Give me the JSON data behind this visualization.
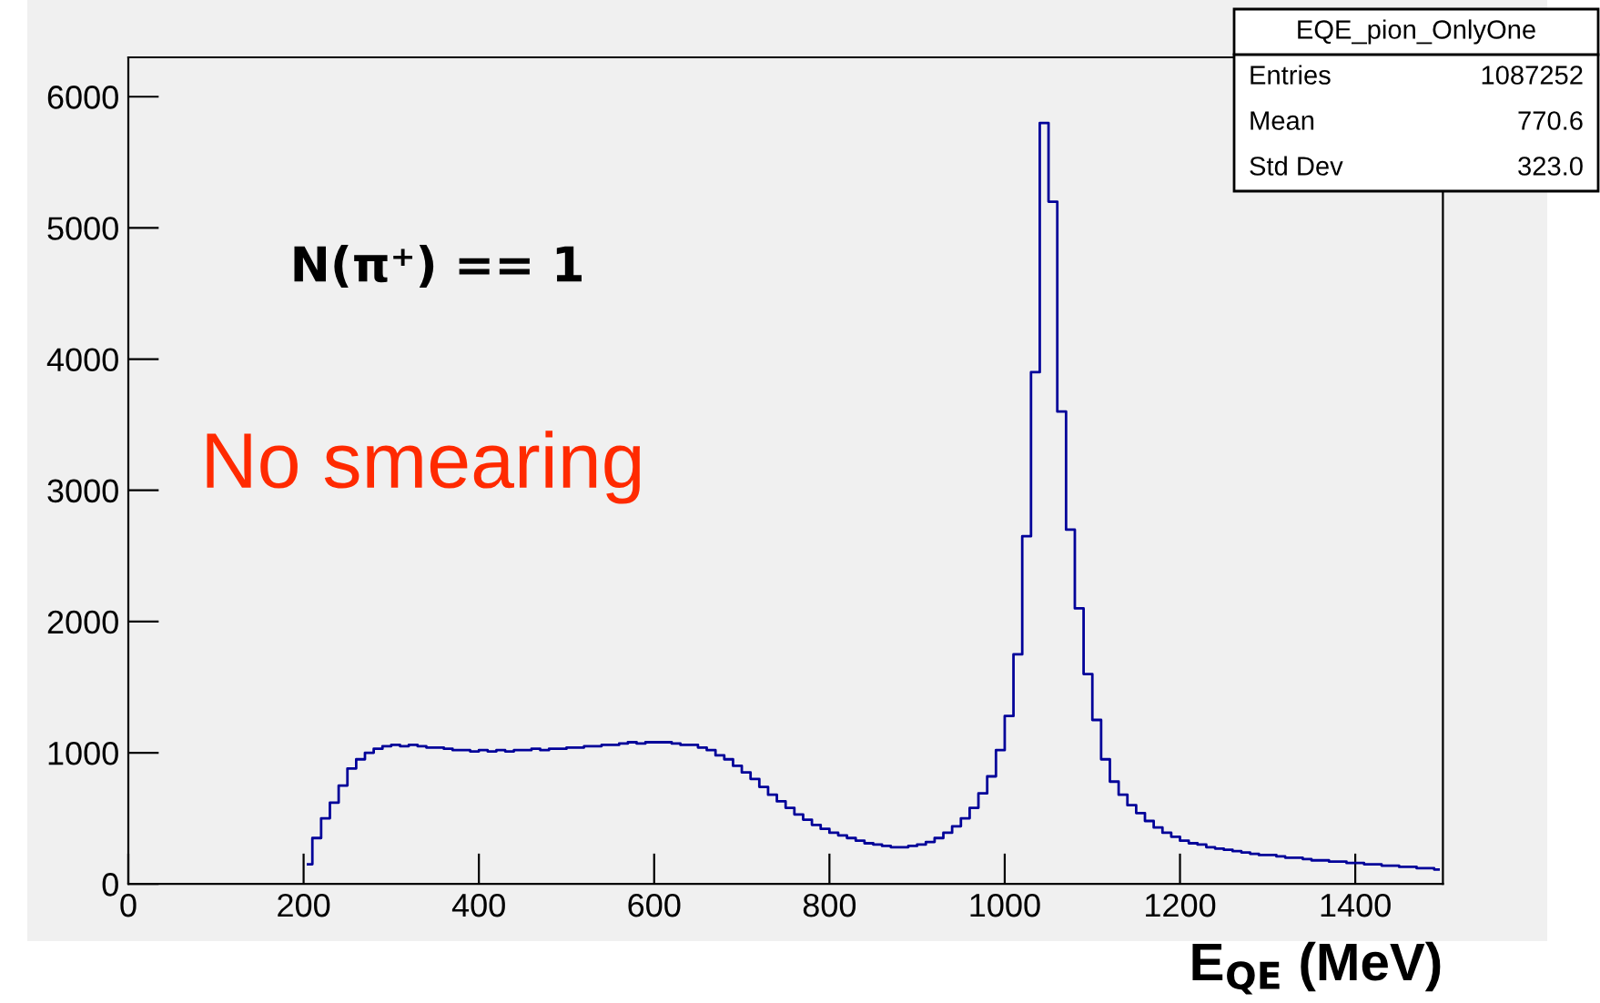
{
  "chart_data": {
    "type": "step",
    "xlabel": "E$_{QE}$ (MeV)",
    "x": [
      205,
      215,
      225,
      235,
      245,
      255,
      265,
      275,
      285,
      295,
      305,
      315,
      325,
      335,
      345,
      355,
      365,
      375,
      385,
      395,
      405,
      415,
      425,
      435,
      445,
      455,
      465,
      475,
      485,
      495,
      505,
      515,
      525,
      535,
      545,
      555,
      565,
      575,
      585,
      595,
      605,
      615,
      625,
      635,
      645,
      655,
      665,
      675,
      685,
      695,
      705,
      715,
      725,
      735,
      745,
      755,
      765,
      775,
      785,
      795,
      805,
      815,
      825,
      835,
      845,
      855,
      865,
      875,
      885,
      895,
      905,
      915,
      925,
      935,
      945,
      955,
      965,
      975,
      985,
      995,
      1005,
      1015,
      1025,
      1035,
      1045,
      1055,
      1065,
      1075,
      1085,
      1095,
      1105,
      1115,
      1125,
      1135,
      1145,
      1155,
      1165,
      1175,
      1185,
      1195,
      1205,
      1215,
      1225,
      1235,
      1245,
      1255,
      1265,
      1275,
      1285,
      1295,
      1305,
      1315,
      1325,
      1335,
      1345,
      1355,
      1365,
      1375,
      1385,
      1395,
      1405,
      1415,
      1425,
      1435,
      1445,
      1455,
      1465,
      1475,
      1485,
      1495
    ],
    "values": [
      150,
      350,
      500,
      620,
      750,
      880,
      950,
      1000,
      1030,
      1050,
      1060,
      1050,
      1060,
      1050,
      1040,
      1040,
      1030,
      1020,
      1020,
      1010,
      1020,
      1010,
      1020,
      1010,
      1020,
      1020,
      1030,
      1020,
      1030,
      1030,
      1040,
      1040,
      1050,
      1050,
      1060,
      1060,
      1070,
      1080,
      1070,
      1080,
      1080,
      1080,
      1070,
      1060,
      1060,
      1040,
      1020,
      980,
      950,
      900,
      850,
      800,
      740,
      680,
      630,
      580,
      530,
      490,
      450,
      420,
      390,
      370,
      350,
      330,
      310,
      300,
      290,
      280,
      280,
      290,
      300,
      320,
      350,
      390,
      440,
      500,
      580,
      690,
      820,
      1020,
      1280,
      1750,
      2650,
      3900,
      5800,
      5200,
      3600,
      2700,
      2100,
      1600,
      1250,
      950,
      780,
      680,
      600,
      540,
      480,
      430,
      390,
      360,
      330,
      310,
      300,
      280,
      270,
      260,
      250,
      240,
      230,
      220,
      220,
      210,
      200,
      200,
      190,
      180,
      180,
      170,
      170,
      160,
      160,
      150,
      150,
      140,
      140,
      130,
      130,
      120,
      120,
      110
    ],
    "color": "#000099",
    "xlim": [
      0,
      1500
    ],
    "xticks": [
      0,
      200,
      400,
      600,
      800,
      1000,
      1200,
      1400
    ],
    "ylim": [
      0,
      6300
    ],
    "yticks": [
      0,
      1000,
      2000,
      3000,
      4000,
      5000,
      6000
    ],
    "grid": false,
    "legend": false,
    "marker": "none",
    "annotations": [
      "EQE_pion_OnlyOne",
      "Entries",
      "1087252",
      "Mean",
      "770.6",
      "Std Dev",
      "323.0",
      "N(π⁺) == 1",
      "No smearing"
    ]
  }
}
